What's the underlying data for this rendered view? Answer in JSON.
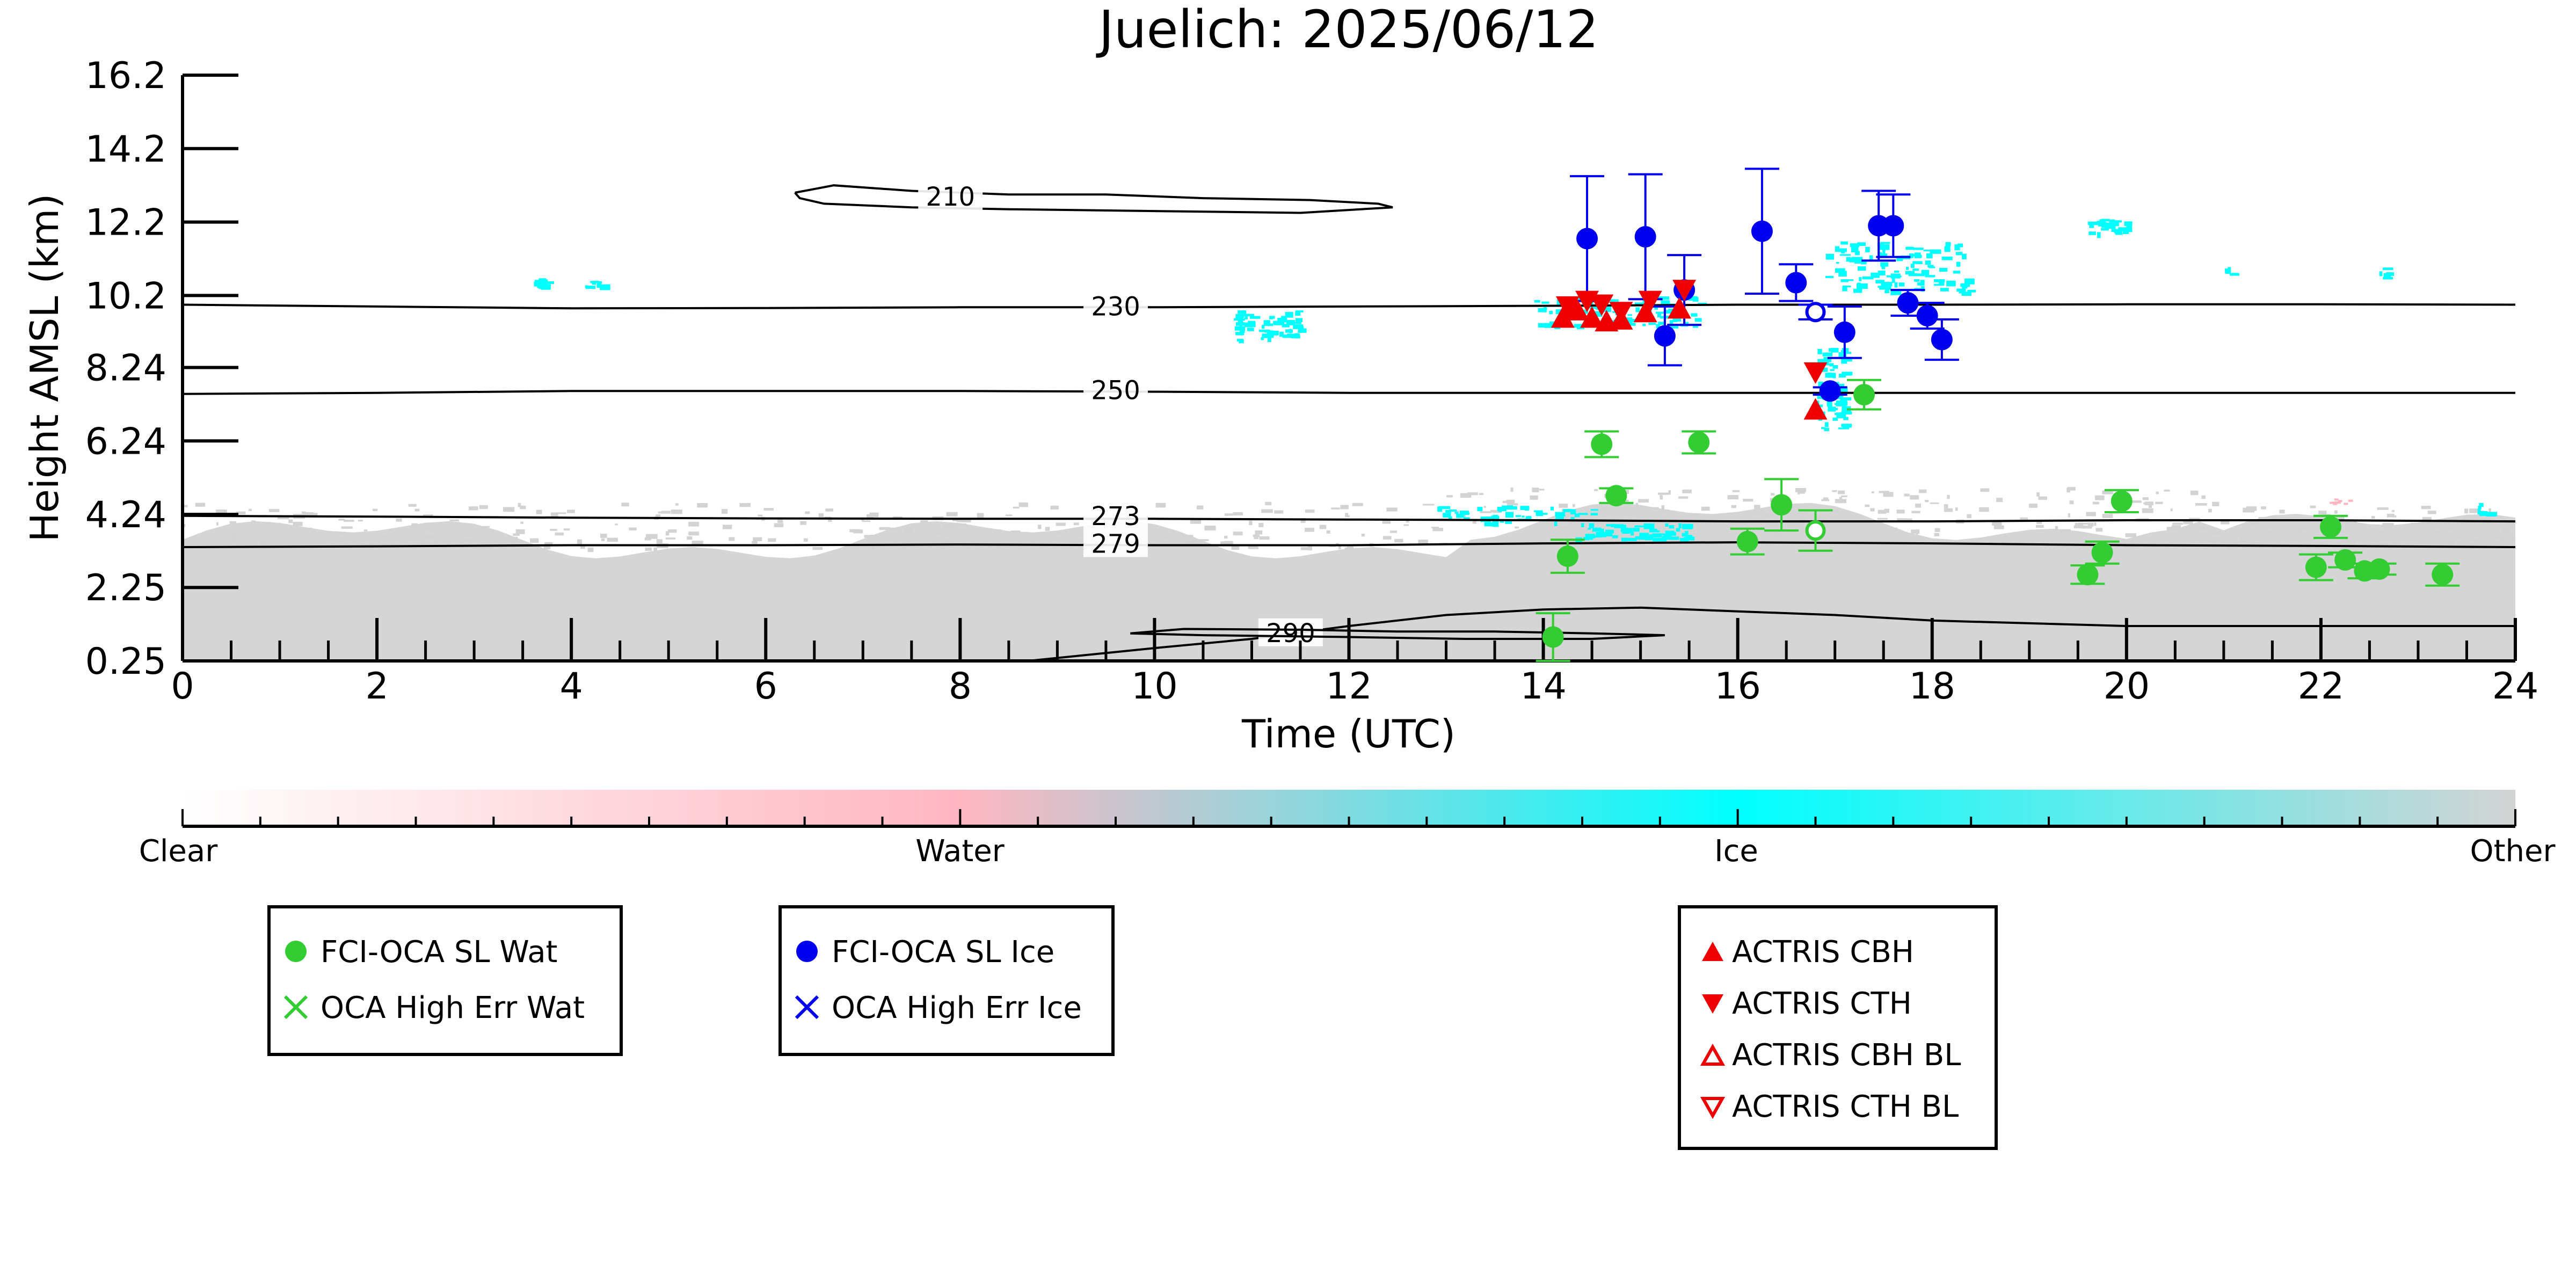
{
  "chart_data": {
    "type": "scatter",
    "title": "Juelich: 2025/06/12",
    "xlabel": "Time (UTC)",
    "ylabel": "Height AMSL (km)",
    "xlim": [
      0,
      24
    ],
    "ylim": [
      0.25,
      16.2
    ],
    "x_ticks": [
      "0",
      "2",
      "4",
      "6",
      "8",
      "10",
      "12",
      "14",
      "16",
      "18",
      "20",
      "22",
      "24"
    ],
    "y_ticks": [
      {
        "value": 0.25,
        "label": "0.25"
      },
      {
        "value": 2.25,
        "label": "2.25"
      },
      {
        "value": 4.24,
        "label": "4.24"
      },
      {
        "value": 6.24,
        "label": "6.24"
      },
      {
        "value": 8.24,
        "label": "8.24"
      },
      {
        "value": 10.2,
        "label": "10.2"
      },
      {
        "value": 12.2,
        "label": "12.2"
      },
      {
        "value": 14.2,
        "label": "14.2"
      },
      {
        "value": 16.2,
        "label": "16.2"
      }
    ],
    "colors": {
      "water_marker": "#33cc33",
      "ice_marker": "#0000ee",
      "actris_marker": "#ee0000",
      "clear": "#ffffff",
      "water": "#ffb6c1",
      "ice": "#00ffff",
      "other": "#d3d3d3"
    },
    "colorbar": {
      "labels": [
        "Clear",
        "Water",
        "Ice",
        "Other"
      ],
      "positions": [
        0,
        0.333,
        0.667,
        1.0
      ]
    },
    "contours": [
      {
        "label": "210",
        "label_x": 7.9,
        "label_y": 12.85,
        "points": [
          [
            6.3,
            13.0
          ],
          [
            6.7,
            13.2
          ],
          [
            7.5,
            13.05
          ],
          [
            8.5,
            12.95
          ],
          [
            9.5,
            12.95
          ],
          [
            10.5,
            12.85
          ],
          [
            11.6,
            12.8
          ],
          [
            12.3,
            12.7
          ],
          [
            12.45,
            12.6
          ],
          [
            11.5,
            12.45
          ],
          [
            10,
            12.5
          ],
          [
            8.5,
            12.55
          ],
          [
            7.5,
            12.6
          ],
          [
            6.6,
            12.7
          ],
          [
            6.35,
            12.85
          ],
          [
            6.3,
            13.0
          ]
        ]
      },
      {
        "label": "230",
        "label_x": 9.6,
        "label_y": 9.86,
        "points": [
          [
            0,
            9.95
          ],
          [
            2,
            9.9
          ],
          [
            4,
            9.85
          ],
          [
            6,
            9.86
          ],
          [
            8,
            9.88
          ],
          [
            10,
            9.88
          ],
          [
            12,
            9.9
          ],
          [
            14,
            9.92
          ],
          [
            16,
            9.95
          ],
          [
            18,
            9.95
          ],
          [
            20,
            9.96
          ],
          [
            22,
            9.96
          ],
          [
            24,
            9.95
          ]
        ]
      },
      {
        "label": "250",
        "label_x": 9.6,
        "label_y": 7.58,
        "points": [
          [
            0,
            7.52
          ],
          [
            2,
            7.55
          ],
          [
            4,
            7.6
          ],
          [
            6,
            7.6
          ],
          [
            8,
            7.6
          ],
          [
            10,
            7.58
          ],
          [
            12,
            7.55
          ],
          [
            14,
            7.55
          ],
          [
            16,
            7.55
          ],
          [
            18,
            7.55
          ],
          [
            20,
            7.55
          ],
          [
            22,
            7.55
          ],
          [
            24,
            7.55
          ]
        ]
      },
      {
        "label": "273",
        "label_x": 9.6,
        "label_y": 4.15,
        "points": [
          [
            0,
            4.2
          ],
          [
            2,
            4.18
          ],
          [
            4,
            4.15
          ],
          [
            6,
            4.13
          ],
          [
            8,
            4.12
          ],
          [
            10,
            4.12
          ],
          [
            12,
            4.1
          ],
          [
            14,
            4.08
          ],
          [
            16,
            4.05
          ],
          [
            18,
            4.05
          ],
          [
            20,
            4.08
          ],
          [
            22,
            4.08
          ],
          [
            24,
            4.05
          ]
        ]
      },
      {
        "label": "279",
        "label_x": 9.6,
        "label_y": 3.4,
        "points": [
          [
            0,
            3.35
          ],
          [
            2,
            3.37
          ],
          [
            4,
            3.4
          ],
          [
            6,
            3.4
          ],
          [
            8,
            3.42
          ],
          [
            10,
            3.4
          ],
          [
            12,
            3.4
          ],
          [
            14,
            3.45
          ],
          [
            16,
            3.48
          ],
          [
            18,
            3.45
          ],
          [
            20,
            3.4
          ],
          [
            22,
            3.38
          ],
          [
            24,
            3.35
          ]
        ]
      },
      {
        "label": "290",
        "label_x": 11.4,
        "label_y": 0.97,
        "points": [
          [
            8.7,
            0.25
          ],
          [
            10,
            0.6
          ],
          [
            11,
            0.85
          ],
          [
            12,
            1.2
          ],
          [
            13,
            1.5
          ],
          [
            14,
            1.65
          ],
          [
            15,
            1.7
          ],
          [
            16,
            1.6
          ],
          [
            17,
            1.5
          ],
          [
            18,
            1.35
          ],
          [
            20,
            1.2
          ],
          [
            22,
            1.2
          ],
          [
            24,
            1.2
          ]
        ]
      },
      {
        "label": "",
        "label_x": 0,
        "label_y": 0,
        "points": [
          [
            9.75,
            1.0
          ],
          [
            10.3,
            1.12
          ],
          [
            11.5,
            1.1
          ],
          [
            12.5,
            1.05
          ],
          [
            13.5,
            1.05
          ],
          [
            14.5,
            1.0
          ],
          [
            15.25,
            0.95
          ],
          [
            14.5,
            0.85
          ],
          [
            13.2,
            0.85
          ],
          [
            12,
            0.9
          ],
          [
            10.5,
            0.95
          ],
          [
            9.75,
            1.0
          ]
        ]
      }
    ],
    "series": [
      {
        "name": "FCI-OCA SL Wat",
        "marker": "circle",
        "color": "#33cc33",
        "points": [
          {
            "x": 14.1,
            "y": 0.9,
            "err": 0.65
          },
          {
            "x": 14.25,
            "y": 3.1,
            "err": 0.45
          },
          {
            "x": 14.6,
            "y": 6.15,
            "err": 0.35
          },
          {
            "x": 14.75,
            "y": 4.75,
            "err": 0.2
          },
          {
            "x": 15.6,
            "y": 6.2,
            "err": 0.3
          },
          {
            "x": 16.1,
            "y": 3.5,
            "err": 0.35
          },
          {
            "x": 16.45,
            "y": 4.5,
            "err": 0.7
          },
          {
            "x": 17.3,
            "y": 7.5,
            "err": 0.4
          },
          {
            "x": 19.6,
            "y": 2.6,
            "err": 0.25
          },
          {
            "x": 19.75,
            "y": 3.2,
            "err": 0.3
          },
          {
            "x": 19.95,
            "y": 4.6,
            "err": 0.3
          },
          {
            "x": 21.95,
            "y": 2.8,
            "err": 0.35
          },
          {
            "x": 22.1,
            "y": 3.9,
            "err": 0.3
          },
          {
            "x": 22.25,
            "y": 3.0,
            "err": 0.2
          },
          {
            "x": 22.45,
            "y": 2.7,
            "err": 0.2
          },
          {
            "x": 22.6,
            "y": 2.75,
            "err": 0.15
          },
          {
            "x": 23.25,
            "y": 2.6,
            "err": 0.3
          }
        ],
        "hollow": [
          {
            "x": 16.8,
            "y": 3.8,
            "err": 0.55
          }
        ]
      },
      {
        "name": "FCI-OCA SL Ice",
        "marker": "circle",
        "color": "#0000ee",
        "points": [
          {
            "x": 14.45,
            "y": 11.75,
            "err": 1.7
          },
          {
            "x": 15.05,
            "y": 11.8,
            "err": 1.7
          },
          {
            "x": 15.25,
            "y": 9.1,
            "err": 0.8
          },
          {
            "x": 15.45,
            "y": 10.35,
            "err": 0.95
          },
          {
            "x": 16.25,
            "y": 11.95,
            "err": 1.7
          },
          {
            "x": 16.6,
            "y": 10.55,
            "err": 0.5
          },
          {
            "x": 16.95,
            "y": 7.6,
            "err": 0.1
          },
          {
            "x": 17.1,
            "y": 9.2,
            "err": 0.7
          },
          {
            "x": 17.45,
            "y": 12.1,
            "err": 0.95
          },
          {
            "x": 17.6,
            "y": 12.1,
            "err": 0.85
          },
          {
            "x": 17.75,
            "y": 10.0,
            "err": 0.35
          },
          {
            "x": 17.95,
            "y": 9.65,
            "err": 0.35
          },
          {
            "x": 18.1,
            "y": 9.0,
            "err": 0.55
          }
        ],
        "hollow": [
          {
            "x": 16.8,
            "y": 9.75,
            "err": 0.2
          }
        ]
      }
    ],
    "actris": {
      "cbh": [
        {
          "x": 14.2,
          "y": 9.6
        },
        {
          "x": 14.35,
          "y": 9.8
        },
        {
          "x": 14.5,
          "y": 9.6
        },
        {
          "x": 14.65,
          "y": 9.5
        },
        {
          "x": 14.8,
          "y": 9.55
        },
        {
          "x": 15.05,
          "y": 9.75
        },
        {
          "x": 15.4,
          "y": 9.85
        },
        {
          "x": 16.8,
          "y": 7.1
        }
      ],
      "cth": [
        {
          "x": 14.25,
          "y": 9.9
        },
        {
          "x": 14.45,
          "y": 10.05
        },
        {
          "x": 14.6,
          "y": 9.95
        },
        {
          "x": 14.8,
          "y": 9.75
        },
        {
          "x": 15.1,
          "y": 10.05
        },
        {
          "x": 15.45,
          "y": 10.35
        },
        {
          "x": 16.8,
          "y": 8.1
        }
      ]
    },
    "legends": [
      {
        "items": [
          {
            "label": "FCI-OCA SL Wat",
            "symbol": "circle",
            "color": "#33cc33"
          },
          {
            "label": "OCA High Err Wat",
            "symbol": "x",
            "color": "#33cc33"
          }
        ]
      },
      {
        "items": [
          {
            "label": "FCI-OCA SL Ice",
            "symbol": "circle",
            "color": "#0000ee"
          },
          {
            "label": "OCA High Err Ice",
            "symbol": "x",
            "color": "#0000ee"
          }
        ]
      },
      {
        "items": [
          {
            "label": "ACTRIS CBH",
            "symbol": "triangle-up",
            "color": "#ee0000"
          },
          {
            "label": "ACTRIS CTH",
            "symbol": "triangle-down",
            "color": "#ee0000"
          },
          {
            "label": "ACTRIS CBH BL",
            "symbol": "triangle-up-open",
            "color": "#ee0000"
          },
          {
            "label": "ACTRIS CTH BL",
            "symbol": "triangle-down-open",
            "color": "#ee0000"
          }
        ]
      }
    ]
  }
}
